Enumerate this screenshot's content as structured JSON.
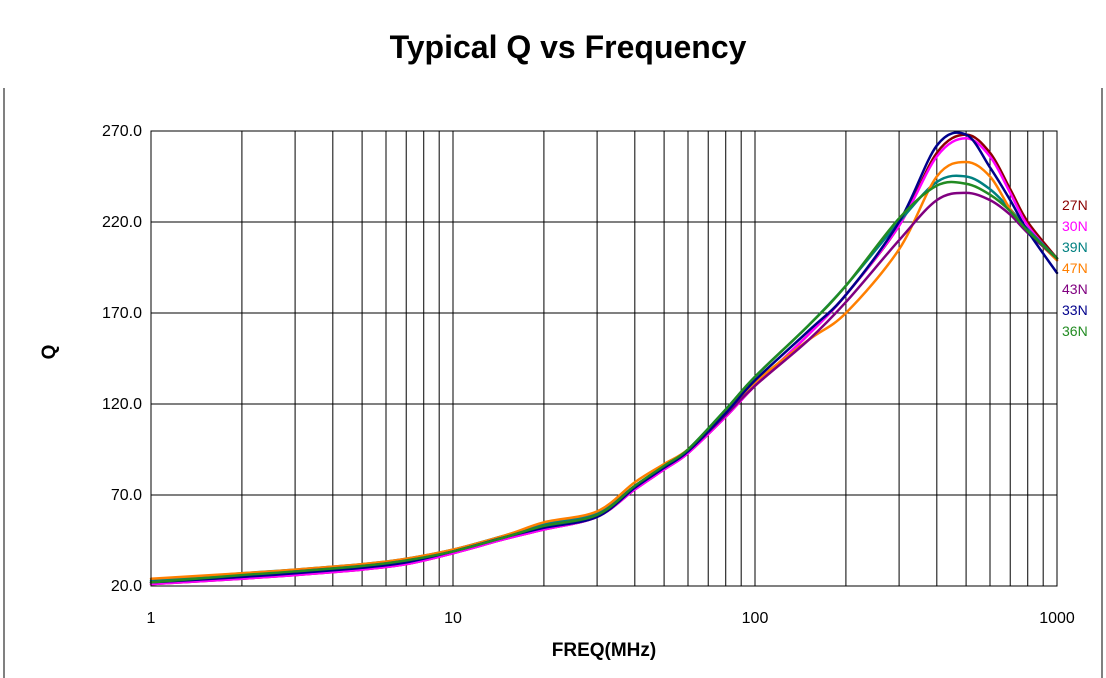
{
  "chart_data": {
    "type": "line",
    "title": "Typical Q vs Frequency",
    "xlabel": "FREQ(MHz)",
    "ylabel": "Q",
    "x_scale": "log",
    "xlim": [
      1,
      1000
    ],
    "ylim": [
      20,
      270
    ],
    "x_ticks": [
      1,
      10,
      100,
      1000
    ],
    "x_tick_labels": [
      "1",
      "10",
      "100",
      "1000"
    ],
    "y_ticks": [
      20,
      70,
      120,
      170,
      220,
      270
    ],
    "y_tick_labels": [
      "20.0",
      "70.0",
      "120.0",
      "170.0",
      "220.0",
      "270.0"
    ],
    "grid": true,
    "legend_position": "right",
    "series": [
      {
        "name": "27N",
        "color": "#8b0000",
        "points": [
          [
            1,
            21
          ],
          [
            2,
            24
          ],
          [
            3,
            26
          ],
          [
            5,
            29
          ],
          [
            7,
            32
          ],
          [
            10,
            38
          ],
          [
            15,
            46
          ],
          [
            20,
            51
          ],
          [
            30,
            58
          ],
          [
            40,
            73
          ],
          [
            50,
            84
          ],
          [
            60,
            93
          ],
          [
            80,
            113
          ],
          [
            100,
            130
          ],
          [
            150,
            158
          ],
          [
            200,
            180
          ],
          [
            300,
            218
          ],
          [
            400,
            258
          ],
          [
            500,
            268
          ],
          [
            600,
            258
          ],
          [
            700,
            238
          ],
          [
            800,
            220
          ],
          [
            1000,
            200
          ]
        ]
      },
      {
        "name": "30N",
        "color": "#ff00ff",
        "points": [
          [
            1,
            21
          ],
          [
            2,
            24
          ],
          [
            3,
            26
          ],
          [
            5,
            29
          ],
          [
            7,
            32
          ],
          [
            10,
            38
          ],
          [
            15,
            46
          ],
          [
            20,
            51
          ],
          [
            30,
            58
          ],
          [
            40,
            73
          ],
          [
            50,
            84
          ],
          [
            60,
            93
          ],
          [
            80,
            113
          ],
          [
            100,
            130
          ],
          [
            150,
            158
          ],
          [
            200,
            180
          ],
          [
            300,
            218
          ],
          [
            400,
            256
          ],
          [
            500,
            266
          ],
          [
            600,
            256
          ],
          [
            700,
            236
          ],
          [
            800,
            218
          ],
          [
            1000,
            199
          ]
        ]
      },
      {
        "name": "39N",
        "color": "#008080",
        "points": [
          [
            1,
            23
          ],
          [
            2,
            27
          ],
          [
            3,
            29
          ],
          [
            5,
            32
          ],
          [
            7,
            35
          ],
          [
            10,
            40
          ],
          [
            15,
            48
          ],
          [
            20,
            54
          ],
          [
            30,
            60
          ],
          [
            40,
            75
          ],
          [
            50,
            86
          ],
          [
            60,
            95
          ],
          [
            80,
            117
          ],
          [
            100,
            135
          ],
          [
            150,
            163
          ],
          [
            200,
            185
          ],
          [
            300,
            220
          ],
          [
            400,
            242
          ],
          [
            500,
            245
          ],
          [
            600,
            238
          ],
          [
            700,
            227
          ],
          [
            800,
            216
          ],
          [
            1000,
            200
          ]
        ]
      },
      {
        "name": "47N",
        "color": "#ff7f00",
        "points": [
          [
            1,
            24
          ],
          [
            2,
            27
          ],
          [
            3,
            29
          ],
          [
            5,
            32
          ],
          [
            7,
            35
          ],
          [
            10,
            40
          ],
          [
            15,
            48
          ],
          [
            20,
            55
          ],
          [
            30,
            61
          ],
          [
            40,
            77
          ],
          [
            50,
            87
          ],
          [
            60,
            95
          ],
          [
            80,
            115
          ],
          [
            100,
            132
          ],
          [
            150,
            155
          ],
          [
            200,
            170
          ],
          [
            300,
            205
          ],
          [
            400,
            245
          ],
          [
            500,
            253
          ],
          [
            600,
            245
          ],
          [
            700,
            227
          ],
          [
            800,
            215
          ],
          [
            1000,
            199
          ]
        ]
      },
      {
        "name": "43N",
        "color": "#800080",
        "points": [
          [
            1,
            22
          ],
          [
            2,
            25
          ],
          [
            3,
            28
          ],
          [
            5,
            31
          ],
          [
            7,
            34
          ],
          [
            10,
            39
          ],
          [
            15,
            47
          ],
          [
            20,
            53
          ],
          [
            30,
            59
          ],
          [
            40,
            75
          ],
          [
            50,
            85
          ],
          [
            60,
            94
          ],
          [
            80,
            114
          ],
          [
            100,
            130
          ],
          [
            150,
            155
          ],
          [
            200,
            176
          ],
          [
            300,
            210
          ],
          [
            400,
            232
          ],
          [
            500,
            236
          ],
          [
            600,
            232
          ],
          [
            700,
            224
          ],
          [
            800,
            214
          ],
          [
            1000,
            200
          ]
        ]
      },
      {
        "name": "33N",
        "color": "#00008b",
        "points": [
          [
            1,
            22
          ],
          [
            2,
            25
          ],
          [
            3,
            27
          ],
          [
            5,
            30
          ],
          [
            7,
            33
          ],
          [
            10,
            39
          ],
          [
            15,
            47
          ],
          [
            20,
            52
          ],
          [
            30,
            58
          ],
          [
            40,
            74
          ],
          [
            50,
            85
          ],
          [
            60,
            94
          ],
          [
            80,
            115
          ],
          [
            100,
            133
          ],
          [
            150,
            160
          ],
          [
            200,
            180
          ],
          [
            300,
            220
          ],
          [
            400,
            262
          ],
          [
            500,
            268
          ],
          [
            600,
            250
          ],
          [
            700,
            232
          ],
          [
            800,
            215
          ],
          [
            1000,
            192
          ]
        ]
      },
      {
        "name": "36N",
        "color": "#228b22",
        "points": [
          [
            1,
            22
          ],
          [
            2,
            26
          ],
          [
            3,
            28
          ],
          [
            5,
            31
          ],
          [
            7,
            34
          ],
          [
            10,
            39
          ],
          [
            15,
            47
          ],
          [
            20,
            53
          ],
          [
            30,
            59
          ],
          [
            40,
            75
          ],
          [
            50,
            86
          ],
          [
            60,
            95
          ],
          [
            80,
            117
          ],
          [
            100,
            135
          ],
          [
            150,
            163
          ],
          [
            200,
            185
          ],
          [
            300,
            222
          ],
          [
            400,
            240
          ],
          [
            500,
            241
          ],
          [
            600,
            235
          ],
          [
            700,
            226
          ],
          [
            800,
            215
          ],
          [
            1000,
            200
          ]
        ]
      }
    ]
  }
}
